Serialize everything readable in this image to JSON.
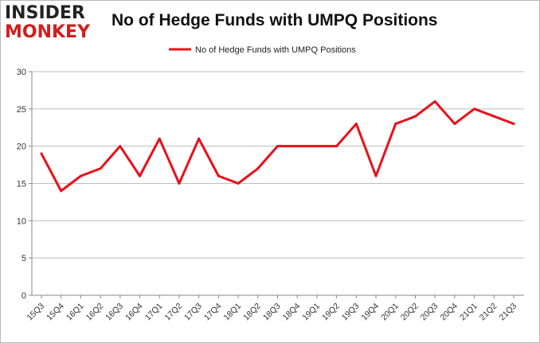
{
  "logo": {
    "line1": "INSIDER",
    "line2": "MONKEY"
  },
  "chart_data": {
    "type": "line",
    "title": "No of Hedge Funds with UMPQ Positions",
    "xlabel": "",
    "ylabel": "",
    "categories": [
      "15Q3",
      "15Q4",
      "16Q1",
      "16Q2",
      "16Q3",
      "16Q4",
      "17Q1",
      "17Q2",
      "17Q3",
      "17Q4",
      "18Q1",
      "18Q2",
      "18Q3",
      "18Q4",
      "19Q1",
      "19Q2",
      "19Q3",
      "19Q4",
      "20Q1",
      "20Q2",
      "20Q3",
      "20Q4",
      "21Q1",
      "21Q2",
      "21Q3"
    ],
    "series": [
      {
        "name": "No of Hedge Funds with UMPQ Positions",
        "color": "#e8101a",
        "values": [
          19,
          14,
          16,
          17,
          20,
          16,
          21,
          15,
          21,
          16,
          15,
          17,
          20,
          20,
          20,
          20,
          23,
          16,
          23,
          24,
          26,
          23,
          25,
          24,
          23
        ]
      }
    ],
    "ylim": [
      0,
      30
    ],
    "yticks": [
      0,
      5,
      10,
      15,
      20,
      25,
      30
    ],
    "grid": "horizontal",
    "legend_position": "top-center"
  }
}
